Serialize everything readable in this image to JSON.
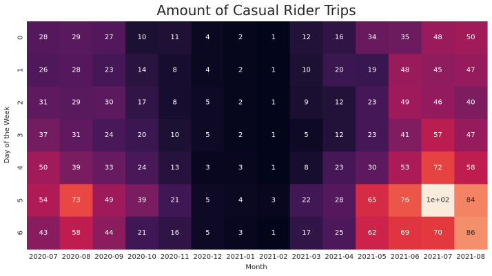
{
  "chart_data": {
    "type": "heatmap",
    "title": "Amount of Casual Rider Trips",
    "xlabel": "Month",
    "ylabel": "Day of the Week",
    "x_categories": [
      "2020-07",
      "2020-08",
      "2020-09",
      "2020-10",
      "2020-11",
      "2020-12",
      "2021-01",
      "2021-02",
      "2021-03",
      "2021-04",
      "2021-05",
      "2021-06",
      "2021-07",
      "2021-08"
    ],
    "y_categories": [
      "0",
      "1",
      "2",
      "3",
      "4",
      "5",
      "6"
    ],
    "values": [
      [
        28,
        29,
        27,
        10,
        11,
        4,
        2,
        1,
        12,
        16,
        34,
        35,
        48,
        50
      ],
      [
        26,
        28,
        23,
        14,
        8,
        4,
        2,
        1,
        10,
        20,
        19,
        48,
        45,
        47
      ],
      [
        31,
        29,
        30,
        17,
        8,
        5,
        2,
        1,
        9,
        12,
        23,
        49,
        46,
        40
      ],
      [
        37,
        31,
        24,
        20,
        10,
        5,
        2,
        1,
        5,
        12,
        23,
        41,
        57,
        47
      ],
      [
        50,
        39,
        33,
        24,
        13,
        3,
        3,
        1,
        8,
        23,
        30,
        53,
        72,
        58
      ],
      [
        54,
        73,
        49,
        39,
        21,
        5,
        4,
        3,
        22,
        28,
        65,
        76,
        100,
        84
      ],
      [
        43,
        58,
        44,
        21,
        16,
        5,
        3,
        1,
        17,
        25,
        62,
        69,
        70,
        86
      ]
    ],
    "value_labels": [
      [
        "28",
        "29",
        "27",
        "10",
        "11",
        "4",
        "2",
        "1",
        "12",
        "16",
        "34",
        "35",
        "48",
        "50"
      ],
      [
        "26",
        "28",
        "23",
        "14",
        "8",
        "4",
        "2",
        "1",
        "10",
        "20",
        "19",
        "48",
        "45",
        "47"
      ],
      [
        "31",
        "29",
        "30",
        "17",
        "8",
        "5",
        "2",
        "1",
        "9",
        "12",
        "23",
        "49",
        "46",
        "40"
      ],
      [
        "37",
        "31",
        "24",
        "20",
        "10",
        "5",
        "2",
        "1",
        "5",
        "12",
        "23",
        "41",
        "57",
        "47"
      ],
      [
        "50",
        "39",
        "33",
        "24",
        "13",
        "3",
        "3",
        "1",
        "8",
        "23",
        "30",
        "53",
        "72",
        "58"
      ],
      [
        "54",
        "73",
        "49",
        "39",
        "21",
        "5",
        "4",
        "3",
        "22",
        "28",
        "65",
        "76",
        "1e+02",
        "84"
      ],
      [
        "43",
        "58",
        "44",
        "21",
        "16",
        "5",
        "3",
        "1",
        "17",
        "25",
        "62",
        "69",
        "70",
        "86"
      ]
    ],
    "colormap": "rocket",
    "color_range": [
      1,
      100
    ],
    "colorbar": false,
    "grid": false
  }
}
